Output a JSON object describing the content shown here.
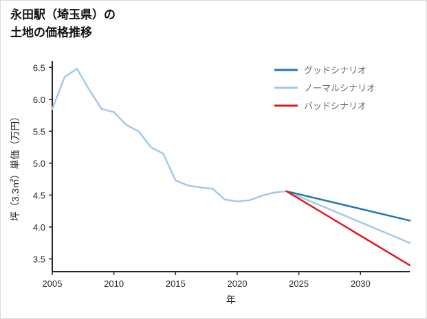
{
  "title": {
    "line1": "永田駅（埼玉県）の",
    "line2": "土地の価格推移"
  },
  "chart_data": {
    "type": "line",
    "title": "永田駅（埼玉県）の土地の価格推移",
    "xlabel": "年",
    "ylabel": "坪（3.3㎡）単価（万円）",
    "xlim": [
      2005,
      2034
    ],
    "ylim": [
      3.3,
      6.6
    ],
    "xticks": [
      2005,
      2010,
      2015,
      2020,
      2025,
      2030
    ],
    "yticks": [
      3.5,
      4.0,
      4.5,
      5.0,
      5.5,
      6.0,
      6.5
    ],
    "grid": false,
    "legend_position": "upper right",
    "axis_color": "#262626",
    "tick_label_color": "#262626",
    "legend_text_color": "#666666",
    "legend_order": [
      "グッドシナリオ",
      "ノーマルシナリオ",
      "バッドシナリオ"
    ],
    "series": [
      {
        "name": "ノーマルシナリオ",
        "color": "#a3c9ea",
        "width": 2.5,
        "x": [
          2005,
          2006,
          2007,
          2008,
          2009,
          2010,
          2011,
          2012,
          2013,
          2014,
          2015,
          2016,
          2017,
          2018,
          2019,
          2020,
          2021,
          2022,
          2023,
          2024,
          2034
        ],
        "values": [
          5.85,
          6.35,
          6.48,
          6.15,
          5.85,
          5.8,
          5.6,
          5.5,
          5.25,
          5.15,
          4.73,
          4.65,
          4.62,
          4.6,
          4.43,
          4.4,
          4.42,
          4.49,
          4.54,
          4.56,
          3.75
        ]
      },
      {
        "name": "グッドシナリオ",
        "color": "#1f77b4",
        "width": 2.5,
        "x": [
          2024,
          2034
        ],
        "values": [
          4.56,
          4.1
        ]
      },
      {
        "name": "バッドシナリオ",
        "color": "#e3191c",
        "width": 2.5,
        "x": [
          2024,
          2034
        ],
        "values": [
          4.56,
          3.4
        ]
      }
    ]
  }
}
